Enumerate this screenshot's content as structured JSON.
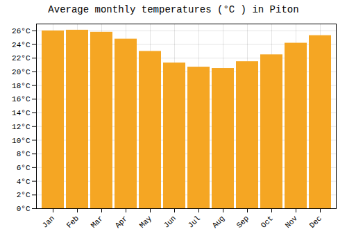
{
  "chart_data": {
    "type": "bar",
    "title": "Average monthly temperatures (°C ) in Piton",
    "categories": [
      "Jan",
      "Feb",
      "Mar",
      "Apr",
      "May",
      "Jun",
      "Jul",
      "Aug",
      "Sep",
      "Oct",
      "Nov",
      "Dec"
    ],
    "values": [
      26.0,
      26.1,
      25.8,
      24.8,
      23.0,
      21.3,
      20.7,
      20.5,
      21.5,
      22.5,
      24.2,
      25.3
    ],
    "color": "#F5A623",
    "ylim": [
      0,
      27
    ],
    "yticks": [
      {
        "value": 0,
        "label": "0°C"
      },
      {
        "value": 2,
        "label": "2°C"
      },
      {
        "value": 4,
        "label": "4°C"
      },
      {
        "value": 6,
        "label": "6°C"
      },
      {
        "value": 8,
        "label": "8°C"
      },
      {
        "value": 10,
        "label": "10°C"
      },
      {
        "value": 12,
        "label": "12°C"
      },
      {
        "value": 14,
        "label": "14°C"
      },
      {
        "value": 16,
        "label": "16°C"
      },
      {
        "value": 18,
        "label": "18°C"
      },
      {
        "value": 20,
        "label": "20°C"
      },
      {
        "value": 22,
        "label": "22°C"
      },
      {
        "value": 24,
        "label": "24°C"
      },
      {
        "value": 26,
        "label": "26°C"
      }
    ],
    "grid": true
  }
}
